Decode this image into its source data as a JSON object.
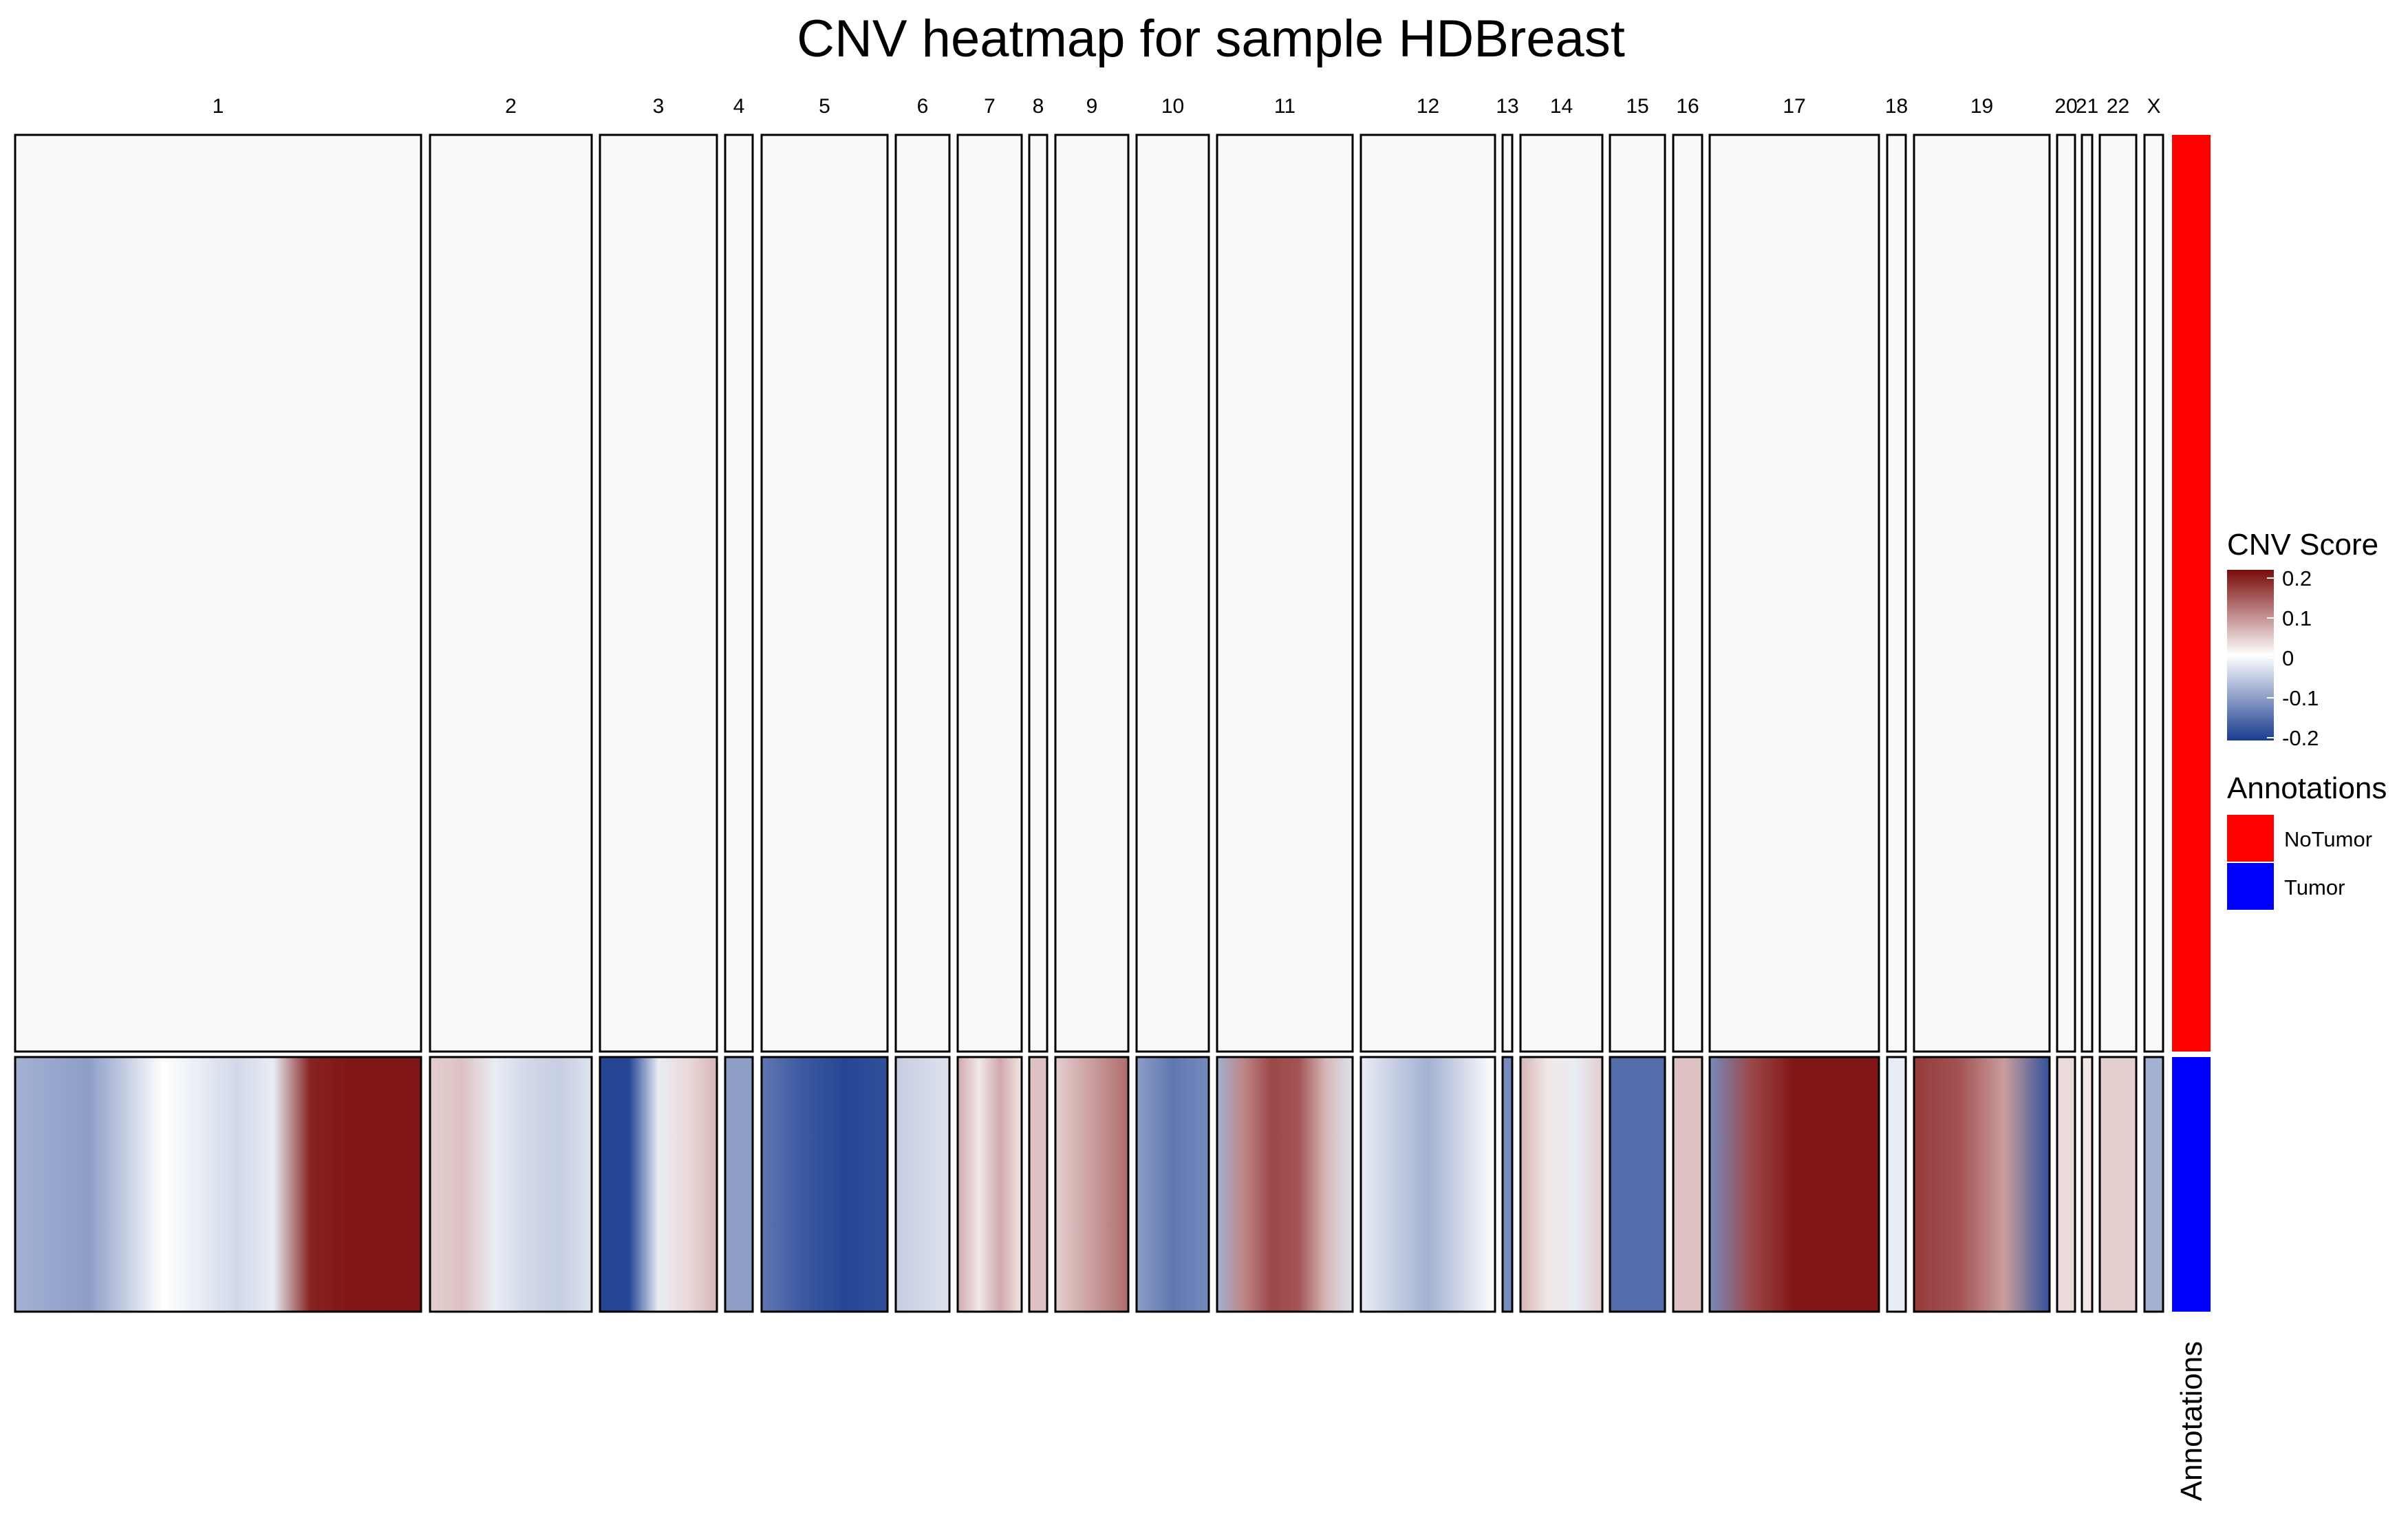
{
  "chart_data": {
    "type": "heatmap",
    "title": "CNV heatmap for sample HDBreast",
    "x_categories": [
      "1",
      "2",
      "3",
      "4",
      "5",
      "6",
      "7",
      "8",
      "9",
      "10",
      "11",
      "12",
      "13",
      "14",
      "15",
      "16",
      "17",
      "18",
      "19",
      "20",
      "21",
      "22",
      "X"
    ],
    "row_groups": [
      "NoTumor",
      "Tumor"
    ],
    "row_group_colors": {
      "NoTumor": "#ff0000",
      "Tumor": "#0000ff"
    },
    "annotation_axis_label": "Annotations",
    "color_scale": {
      "title": "CNV Score",
      "ticks": [
        0.2,
        0.1,
        0,
        -0.1,
        -0.2
      ],
      "tick_labels": [
        "0.2",
        "0.1",
        "0",
        "-0.1",
        "-0.2"
      ],
      "range": [
        -0.2,
        0.2
      ],
      "colors": {
        "low": "#1a3c8f",
        "mid": "#ffffff",
        "high": "#7a0a0a"
      }
    },
    "annotation_legend": {
      "title": "Annotations",
      "items": [
        {
          "label": "NoTumor",
          "color": "#ff0000"
        },
        {
          "label": "Tumor",
          "color": "#0000ff"
        }
      ]
    },
    "NoTumor_scores": "near 0 across all chromosomes",
    "Tumor_scores_by_chromosome": {
      "1": [
        -0.08,
        -0.09,
        -0.1,
        -0.05,
        0,
        -0.02,
        -0.04,
        -0.02,
        0.18,
        0.19,
        0.19,
        0.19
      ],
      "2": [
        0.04,
        0.05,
        -0.02,
        -0.04,
        -0.05,
        -0.03
      ],
      "3": [
        -0.19,
        -0.19,
        -0.02,
        0.03,
        0.06
      ],
      "4": [
        -0.1
      ],
      "5": [
        -0.14,
        -0.17,
        -0.19,
        -0.18
      ],
      "6": [
        -0.05,
        -0.03
      ],
      "7": [
        0.07,
        0.02,
        0.07,
        0.02
      ],
      "8": [
        0.05
      ],
      "9": [
        0.04,
        0.08,
        0.12
      ],
      "10": [
        -0.1,
        -0.14,
        -0.12
      ],
      "11": [
        -0.08,
        0.1,
        0.15,
        0.14,
        0.06,
        -0.03
      ],
      "12": [
        -0.02,
        -0.05,
        -0.08,
        -0.04,
        0
      ],
      "13": [
        -0.12
      ],
      "14": [
        0.06,
        0.02,
        -0.02,
        0.04
      ],
      "15": [
        -0.15
      ],
      "16": [
        0.05
      ],
      "17": [
        -0.12,
        0.15,
        0.19,
        0.19,
        0.19
      ],
      "18": [
        -0.02
      ],
      "19": [
        0.16,
        0.14,
        0.08,
        -0.18
      ],
      "20": [
        0.03
      ],
      "21": [
        0.02
      ],
      "22": [
        0.04
      ],
      "X": [
        -0.08
      ]
    }
  }
}
